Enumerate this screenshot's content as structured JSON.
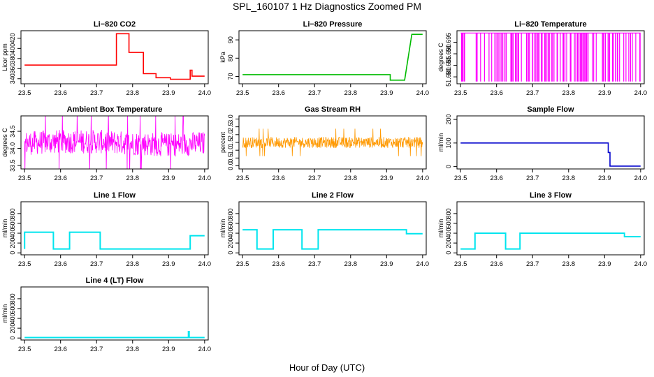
{
  "figure": {
    "title": "SPL_160107  1 Hz Diagnostics Zoomed PM",
    "xlabel": "Hour of Day (UTC)"
  },
  "chart_data": [
    {
      "type": "line",
      "title": "Li−820 CO2",
      "ylabel": "Licor ppm",
      "color": "#ff0000",
      "style": "steps",
      "xlim": [
        23.5,
        24.0
      ],
      "ylim": [
        330,
        435
      ],
      "xticks": [
        "23.5",
        "23.6",
        "23.7",
        "23.8",
        "23.9",
        "24.0"
      ],
      "yticks": [
        {
          "v": 340,
          "label": "340"
        },
        {
          "v": 360,
          "label": "360"
        },
        {
          "v": 380,
          "label": "380"
        },
        {
          "v": 400,
          "label": "400"
        },
        {
          "v": 420,
          "label": "420"
        }
      ],
      "series": [
        {
          "name": "CO2",
          "x": [
            23.5,
            23.755,
            23.755,
            23.79,
            23.79,
            23.83,
            23.83,
            23.865,
            23.865,
            23.905,
            23.905,
            23.96,
            23.96,
            23.965,
            23.965,
            24.0
          ],
          "y": [
            367,
            367,
            429,
            429,
            392,
            392,
            350,
            350,
            342,
            342,
            339,
            339,
            357,
            357,
            345,
            345
          ]
        }
      ]
    },
    {
      "type": "line",
      "title": "Li−820 Pressure",
      "ylabel": "kPa",
      "color": "#00bb00",
      "style": "steps",
      "xlim": [
        23.5,
        24.0
      ],
      "ylim": [
        66,
        95
      ],
      "xticks": [
        "23.5",
        "23.6",
        "23.7",
        "23.8",
        "23.9",
        "24.0"
      ],
      "yticks": [
        {
          "v": 70,
          "label": "70"
        },
        {
          "v": 80,
          "label": "80"
        },
        {
          "v": 90,
          "label": "90"
        }
      ],
      "series": [
        {
          "name": "Pressure",
          "x": [
            23.5,
            23.91,
            23.91,
            23.95,
            23.97,
            24.0
          ],
          "y": [
            71,
            71,
            68,
            68,
            93,
            93
          ]
        }
      ]
    },
    {
      "type": "line",
      "title": "Li−820 Temperature",
      "ylabel": "degrees C",
      "color": "#ff00ff",
      "style": "spikes",
      "xlim": [
        23.5,
        24.0
      ],
      "ylim": [
        51.677,
        51.7
      ],
      "xticks": [
        "23.5",
        "23.6",
        "23.7",
        "23.8",
        "23.9",
        "24.0"
      ],
      "yticks": [
        {
          "v": 51.68,
          "label": "51.680"
        },
        {
          "v": 51.685,
          "label": "51.685"
        },
        {
          "v": 51.69,
          "label": "51.690"
        },
        {
          "v": 51.695,
          "label": "51.695"
        }
      ],
      "series": [
        {
          "name": "Temperature",
          "low": 51.678,
          "high": 51.699
        }
      ]
    },
    {
      "type": "line",
      "title": "Ambient Box Temperature",
      "ylabel": "degrees C",
      "color": "#ff00ff",
      "style": "band",
      "xlim": [
        23.5,
        24.0
      ],
      "ylim": [
        33.4,
        34.95
      ],
      "xticks": [
        "23.5",
        "23.6",
        "23.7",
        "23.8",
        "23.9",
        "24.0"
      ],
      "yticks": [
        {
          "v": 33.5,
          "label": "33.5"
        },
        {
          "v": 34.0,
          "label": "34.0"
        },
        {
          "v": 34.5,
          "label": "34.5"
        }
      ],
      "series": [
        {
          "name": "Ambient",
          "x": [
            23.5,
            23.6,
            23.7,
            23.8,
            23.9,
            24.0
          ],
          "y": [
            34.15,
            34.2,
            34.2,
            34.15,
            34.1,
            34.15
          ],
          "spread": 0.35
        }
      ]
    },
    {
      "type": "line",
      "title": "Gas Stream RH",
      "ylabel": "percent",
      "color": "#ff9900",
      "style": "band",
      "xlim": [
        23.5,
        24.0
      ],
      "ylim": [
        -0.2,
        3.2
      ],
      "xticks": [
        "23.5",
        "23.6",
        "23.7",
        "23.8",
        "23.9",
        "24.0"
      ],
      "yticks": [
        {
          "v": 0.0,
          "label": "0.0"
        },
        {
          "v": 0.5,
          "label": "0.5"
        },
        {
          "v": 1.0,
          "label": "1.0"
        },
        {
          "v": 1.5,
          "label": "1.5"
        },
        {
          "v": 2.0,
          "label": "2.0"
        },
        {
          "v": 2.5,
          "label": "2.5"
        },
        {
          "v": 3.0,
          "label": "3.0"
        }
      ],
      "series": [
        {
          "name": "RH",
          "x": [
            23.5,
            23.6,
            23.7,
            23.8,
            23.9,
            24.0
          ],
          "y": [
            1.5,
            1.5,
            1.5,
            1.5,
            1.5,
            1.5
          ],
          "spread": 0.35
        }
      ]
    },
    {
      "type": "line",
      "title": "Sample Flow",
      "ylabel": "ml/min",
      "color": "#0000cc",
      "style": "steps",
      "xlim": [
        23.5,
        24.0
      ],
      "ylim": [
        -10,
        215
      ],
      "xticks": [
        "23.5",
        "23.6",
        "23.7",
        "23.8",
        "23.9",
        "24.0"
      ],
      "yticks": [
        {
          "v": 0,
          "label": "0"
        },
        {
          "v": 100,
          "label": "100"
        },
        {
          "v": 200,
          "label": "200"
        }
      ],
      "series": [
        {
          "name": "Sample",
          "x": [
            23.5,
            23.91,
            23.91,
            23.915,
            23.915,
            24.0
          ],
          "y": [
            100,
            100,
            60,
            60,
            2,
            2
          ]
        }
      ]
    },
    {
      "type": "line",
      "title": "Line 1 Flow",
      "ylabel": "ml/min",
      "color": "#00e5ee",
      "style": "steps",
      "xlim": [
        23.5,
        24.0
      ],
      "ylim": [
        -40,
        1040
      ],
      "xticks": [
        "23.5",
        "23.6",
        "23.7",
        "23.8",
        "23.9",
        "24.0"
      ],
      "yticks": [
        {
          "v": 0,
          "label": "0"
        },
        {
          "v": 200,
          "label": "200"
        },
        {
          "v": 400,
          "label": "400"
        },
        {
          "v": 600,
          "label": "600"
        },
        {
          "v": 800,
          "label": "800"
        }
      ],
      "series": [
        {
          "name": "Line1",
          "x": [
            23.5,
            23.5,
            23.58,
            23.58,
            23.625,
            23.625,
            23.71,
            23.71,
            23.96,
            23.96,
            24.0
          ],
          "y": [
            80,
            420,
            420,
            80,
            80,
            420,
            420,
            80,
            80,
            350,
            350
          ]
        }
      ]
    },
    {
      "type": "line",
      "title": "Line 2 Flow",
      "ylabel": "ml/min",
      "color": "#00e5ee",
      "style": "steps",
      "xlim": [
        23.5,
        24.0
      ],
      "ylim": [
        -40,
        1040
      ],
      "xticks": [
        "23.5",
        "23.6",
        "23.7",
        "23.8",
        "23.9",
        "24.0"
      ],
      "yticks": [
        {
          "v": 0,
          "label": "0"
        },
        {
          "v": 200,
          "label": "200"
        },
        {
          "v": 400,
          "label": "400"
        },
        {
          "v": 600,
          "label": "600"
        },
        {
          "v": 800,
          "label": "800"
        }
      ],
      "series": [
        {
          "name": "Line2",
          "x": [
            23.5,
            23.54,
            23.54,
            23.585,
            23.585,
            23.665,
            23.665,
            23.71,
            23.71,
            23.955,
            23.955,
            24.0
          ],
          "y": [
            470,
            470,
            80,
            80,
            470,
            470,
            80,
            80,
            470,
            470,
            390,
            390
          ]
        }
      ]
    },
    {
      "type": "line",
      "title": "Line 3 Flow",
      "ylabel": "ml/min",
      "color": "#00e5ee",
      "style": "steps",
      "xlim": [
        23.5,
        24.0
      ],
      "ylim": [
        -40,
        1040
      ],
      "xticks": [
        "23.5",
        "23.6",
        "23.7",
        "23.8",
        "23.9",
        "24.0"
      ],
      "yticks": [
        {
          "v": 0,
          "label": "0"
        },
        {
          "v": 200,
          "label": "200"
        },
        {
          "v": 400,
          "label": "400"
        },
        {
          "v": 600,
          "label": "600"
        },
        {
          "v": 800,
          "label": "800"
        }
      ],
      "series": [
        {
          "name": "Line3",
          "x": [
            23.5,
            23.5,
            23.54,
            23.54,
            23.625,
            23.625,
            23.665,
            23.665,
            23.955,
            23.955,
            24.0
          ],
          "y": [
            80,
            80,
            80,
            400,
            400,
            80,
            80,
            400,
            400,
            330,
            330
          ]
        }
      ]
    },
    {
      "type": "line",
      "title": "Line 4 (LT) Flow",
      "ylabel": "ml/min",
      "color": "#00e5ee",
      "style": "steps",
      "xlim": [
        23.5,
        24.0
      ],
      "ylim": [
        -40,
        1040
      ],
      "xticks": [
        "23.5",
        "23.6",
        "23.7",
        "23.8",
        "23.9",
        "24.0"
      ],
      "yticks": [
        {
          "v": 0,
          "label": "0"
        },
        {
          "v": 200,
          "label": "200"
        },
        {
          "v": 400,
          "label": "400"
        },
        {
          "v": 600,
          "label": "600"
        },
        {
          "v": 800,
          "label": "800"
        }
      ],
      "series": [
        {
          "name": "Line4",
          "x": [
            23.5,
            23.955,
            23.955,
            23.957,
            23.957,
            24.0
          ],
          "y": [
            10,
            10,
            130,
            130,
            10,
            10
          ]
        }
      ]
    }
  ]
}
